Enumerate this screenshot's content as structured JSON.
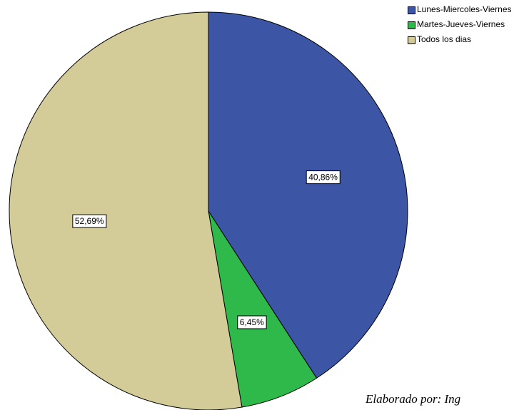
{
  "chart_data": {
    "type": "pie",
    "slices": [
      {
        "label": "Lunes-Miercoles-Viernes",
        "value": 40.86,
        "display": "40,86%",
        "color": "#3c55a5"
      },
      {
        "label": "Martes-Jueves-Viernes",
        "value": 6.45,
        "display": "6,45%",
        "color": "#2eb94a"
      },
      {
        "label": "Todos los dias",
        "value": 52.69,
        "display": "52,69%",
        "color": "#d3cb98"
      }
    ],
    "start_angle": "12 o'clock",
    "direction": "clockwise",
    "legend_position": "top-right"
  },
  "credit_text": "Elaborado por: Ing"
}
